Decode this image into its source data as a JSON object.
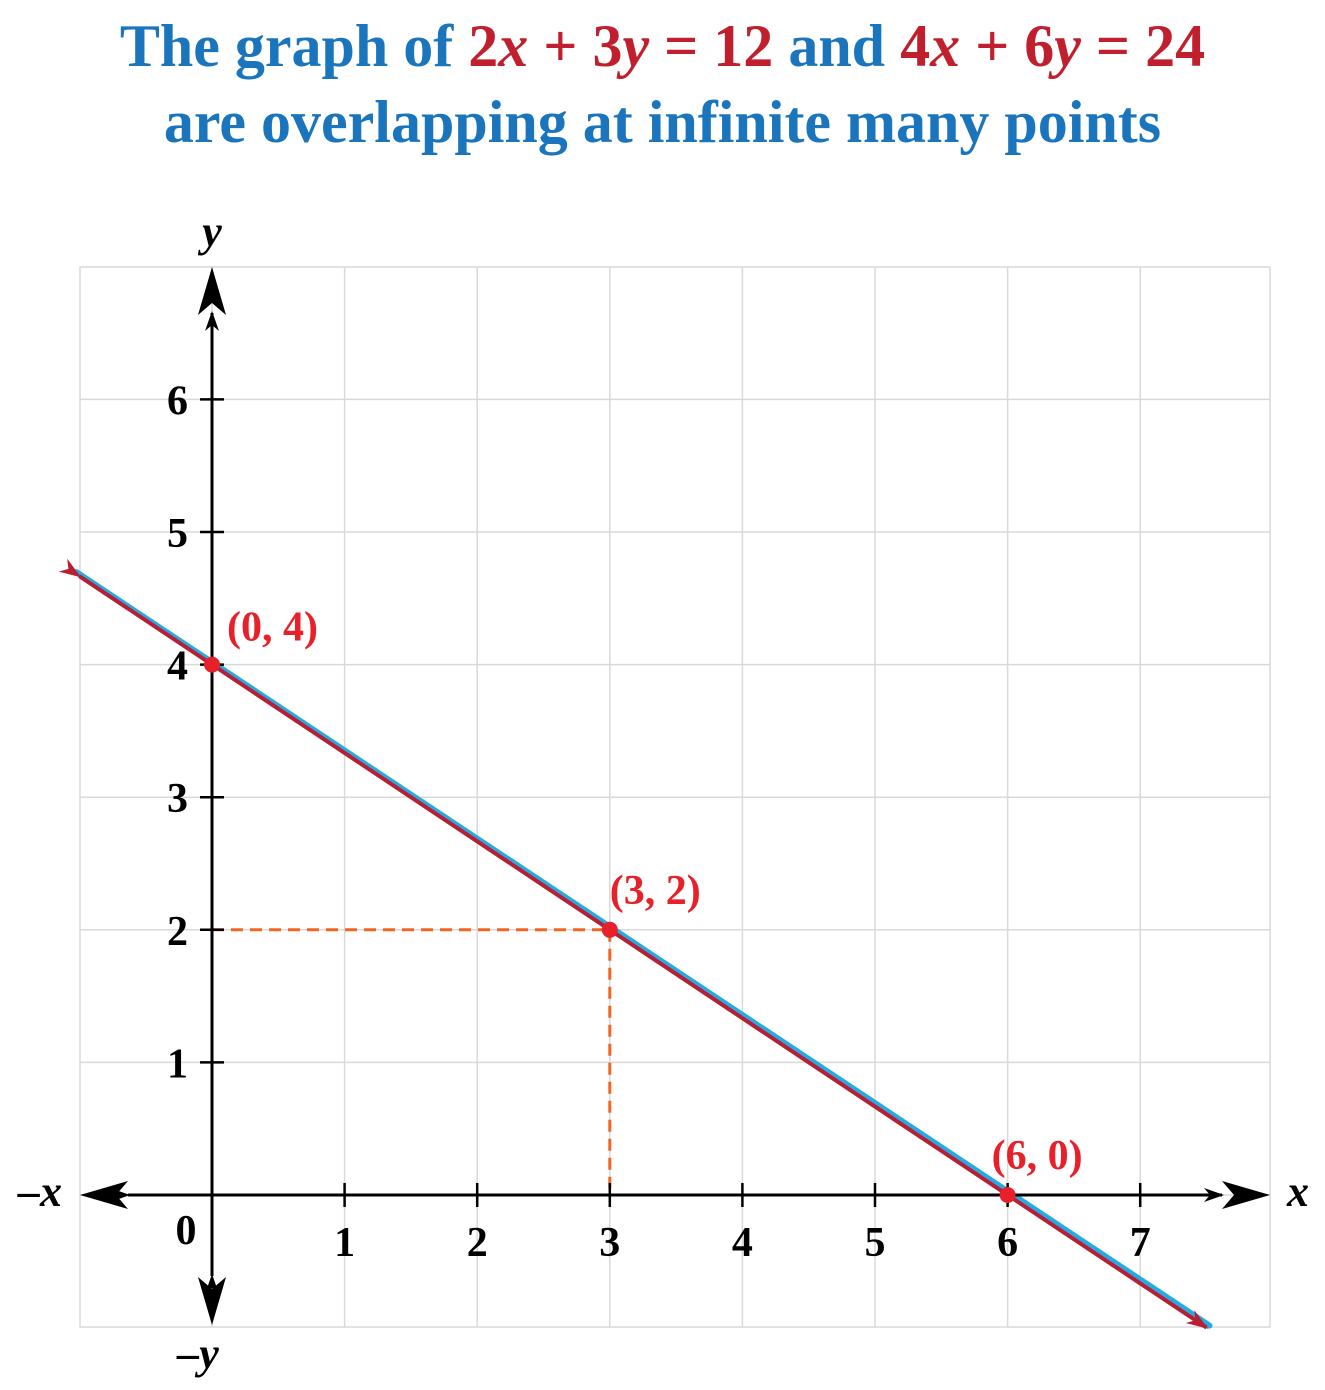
{
  "title": {
    "line1_prefix": "The graph of ",
    "eq1": {
      "a": "2",
      "x": "x",
      "plus": " + ",
      "b": "3",
      "y": "y",
      "rhs": " = 12"
    },
    "conj": " and ",
    "eq2": {
      "a": "4",
      "x": "x",
      "plus": " + ",
      "b": "6",
      "y": "y",
      "rhs": " = 24"
    },
    "line2": "are overlapping at infinite many points"
  },
  "colors": {
    "title": "#1a75bc",
    "equation": "#c0202e",
    "line_under": "#27aae1",
    "line_over": "#b71f34",
    "points": "#e8202a",
    "dashed": "#f26522",
    "grid": "#d9d9d9",
    "axis": "#000000"
  },
  "chart_data": {
    "type": "line",
    "xlim": [
      -1,
      8
    ],
    "ylim": [
      -1,
      7
    ],
    "grid": true,
    "x_ticks": [
      "1",
      "2",
      "3",
      "4",
      "5",
      "6",
      "7"
    ],
    "y_ticks": [
      "1",
      "2",
      "3",
      "4",
      "5",
      "6"
    ],
    "origin_label": "0",
    "axis_labels": {
      "x_pos": "x",
      "x_neg": "–x",
      "y_pos": "y",
      "y_neg": "–y"
    },
    "series": [
      {
        "equation": "2x + 3y = 12",
        "x": [
          -1,
          7.5
        ],
        "y": [
          4.667,
          -1
        ]
      },
      {
        "equation": "4x + 6y = 24",
        "x": [
          -1,
          7.5
        ],
        "y": [
          4.667,
          -1
        ]
      }
    ],
    "points": [
      {
        "x": 0,
        "y": 4,
        "label": "(0, 4)"
      },
      {
        "x": 3,
        "y": 2,
        "label": "(3, 2)"
      },
      {
        "x": 6,
        "y": 0,
        "label": "(6, 0)"
      }
    ],
    "guides": [
      {
        "from": [
          0,
          2
        ],
        "to": [
          3,
          2
        ]
      },
      {
        "from": [
          3,
          2
        ],
        "to": [
          3,
          0
        ]
      }
    ]
  }
}
